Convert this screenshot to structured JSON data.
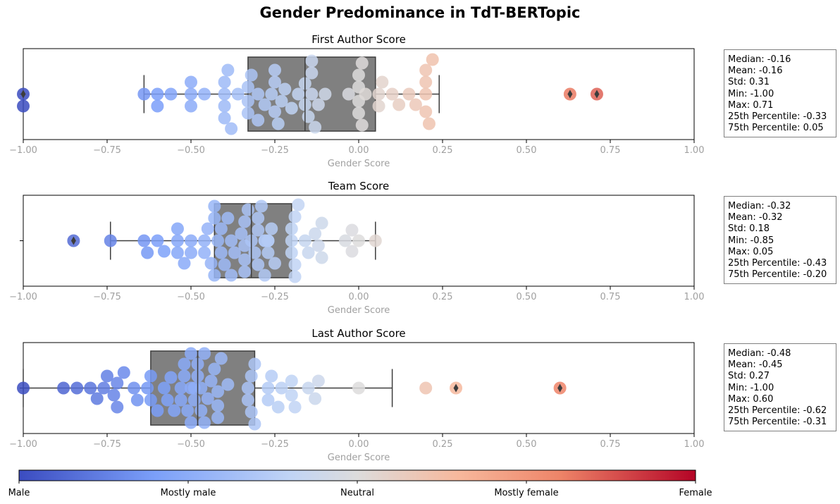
{
  "title": "Gender Predominance in TdT-BERTopic",
  "colors": {
    "box_fill": "#808080",
    "box_edge": "#3d3d3d",
    "colormap": [
      "#3b4cc0",
      "#7b9ff9",
      "#c0d4f5",
      "#dddcdc",
      "#f7b89c",
      "#ee8468",
      "#b40426"
    ]
  },
  "colorbar": {
    "labels": [
      "Male",
      "Mostly male",
      "Neutral",
      "Mostly female",
      "Female"
    ]
  },
  "chart_data": [
    {
      "type": "box-swarm",
      "title": "First Author Score",
      "xlabel": "Gender Score",
      "xlim": [
        -1.0,
        1.0
      ],
      "xticks": [
        "−1.00",
        "−0.75",
        "−0.50",
        "−0.25",
        "0.00",
        "0.25",
        "0.50",
        "0.75",
        "1.00"
      ],
      "box": {
        "q1": -0.33,
        "median": -0.16,
        "q3": 0.05,
        "whisker_low": -0.64,
        "whisker_high": 0.24
      },
      "outliers": [
        -1.0,
        0.63,
        0.71
      ],
      "points": [
        -1.0,
        -1.0,
        -0.64,
        -0.6,
        -0.6,
        -0.56,
        -0.5,
        -0.5,
        -0.5,
        -0.46,
        -0.4,
        -0.4,
        -0.4,
        -0.4,
        -0.39,
        -0.38,
        -0.36,
        -0.33,
        -0.33,
        -0.33,
        -0.32,
        -0.3,
        -0.3,
        -0.28,
        -0.26,
        -0.25,
        -0.25,
        -0.25,
        -0.24,
        -0.23,
        -0.22,
        -0.2,
        -0.18,
        -0.16,
        -0.16,
        -0.15,
        -0.14,
        -0.14,
        -0.14,
        -0.13,
        -0.12,
        -0.1,
        -0.03,
        0.0,
        0.0,
        0.0,
        0.0,
        0.01,
        0.01,
        0.02,
        0.06,
        0.06,
        0.07,
        0.1,
        0.12,
        0.15,
        0.17,
        0.2,
        0.2,
        0.2,
        0.2,
        0.21,
        0.22,
        0.63,
        0.71
      ],
      "stats": [
        "Median: -0.16",
        "Mean: -0.16",
        "Std: 0.31",
        "Min: -1.00",
        "Max: 0.71",
        "25th Percentile: -0.33",
        "75th Percentile: 0.05"
      ]
    },
    {
      "type": "box-swarm",
      "title": "Team Score",
      "xlabel": "Gender Score",
      "xlim": [
        -1.0,
        1.0
      ],
      "xticks": [
        "−1.00",
        "−0.75",
        "−0.50",
        "−0.25",
        "0.00",
        "0.25",
        "0.50",
        "0.75",
        "1.00"
      ],
      "box": {
        "q1": -0.43,
        "median": -0.32,
        "q3": -0.2,
        "whisker_low": -0.74,
        "whisker_high": 0.05
      },
      "outliers": [
        -0.85
      ],
      "points": [
        -0.85,
        -0.74,
        -0.64,
        -0.63,
        -0.6,
        -0.58,
        -0.54,
        -0.54,
        -0.54,
        -0.52,
        -0.5,
        -0.5,
        -0.46,
        -0.46,
        -0.45,
        -0.44,
        -0.43,
        -0.43,
        -0.43,
        -0.42,
        -0.41,
        -0.41,
        -0.4,
        -0.39,
        -0.38,
        -0.38,
        -0.37,
        -0.35,
        -0.34,
        -0.34,
        -0.34,
        -0.34,
        -0.33,
        -0.32,
        -0.31,
        -0.3,
        -0.3,
        -0.3,
        -0.29,
        -0.28,
        -0.28,
        -0.28,
        -0.27,
        -0.27,
        -0.27,
        -0.26,
        -0.25,
        -0.2,
        -0.2,
        -0.2,
        -0.19,
        -0.19,
        -0.19,
        -0.18,
        -0.16,
        -0.15,
        -0.13,
        -0.12,
        -0.11,
        -0.11,
        -0.04,
        -0.02,
        -0.02,
        0.0,
        0.05
      ],
      "stats": [
        "Median: -0.32",
        "Mean: -0.32",
        "Std: 0.18",
        "Min: -0.85",
        "Max: 0.05",
        "25th Percentile: -0.43",
        "75th Percentile: -0.20"
      ]
    },
    {
      "type": "box-swarm",
      "title": "Last Author Score",
      "xlabel": "Gender Score",
      "xlim": [
        -1.0,
        1.0
      ],
      "xticks": [
        "−1.00",
        "−0.75",
        "−0.50",
        "−0.25",
        "0.00",
        "0.25",
        "0.50",
        "0.75",
        "1.00"
      ],
      "box": {
        "q1": -0.62,
        "median": -0.48,
        "q3": -0.31,
        "whisker_low": -1.0,
        "whisker_high": 0.1
      },
      "outliers": [
        0.29,
        0.6
      ],
      "points": [
        -1.0,
        -0.88,
        -0.84,
        -0.8,
        -0.78,
        -0.76,
        -0.75,
        -0.73,
        -0.72,
        -0.72,
        -0.7,
        -0.67,
        -0.66,
        -0.63,
        -0.62,
        -0.62,
        -0.6,
        -0.58,
        -0.57,
        -0.56,
        -0.55,
        -0.53,
        -0.53,
        -0.52,
        -0.52,
        -0.51,
        -0.5,
        -0.5,
        -0.5,
        -0.49,
        -0.49,
        -0.48,
        -0.48,
        -0.47,
        -0.47,
        -0.46,
        -0.46,
        -0.45,
        -0.44,
        -0.43,
        -0.42,
        -0.42,
        -0.42,
        -0.41,
        -0.39,
        -0.33,
        -0.33,
        -0.32,
        -0.32,
        -0.31,
        -0.31,
        -0.27,
        -0.27,
        -0.26,
        -0.24,
        -0.23,
        -0.2,
        -0.2,
        -0.19,
        -0.15,
        -0.13,
        -0.12,
        0.0,
        0.2,
        0.29,
        0.6
      ],
      "stats": [
        "Median: -0.48",
        "Mean: -0.45",
        "Std: 0.27",
        "Min: -1.00",
        "Max: 0.60",
        "25th Percentile: -0.62",
        "75th Percentile: -0.31"
      ]
    }
  ]
}
